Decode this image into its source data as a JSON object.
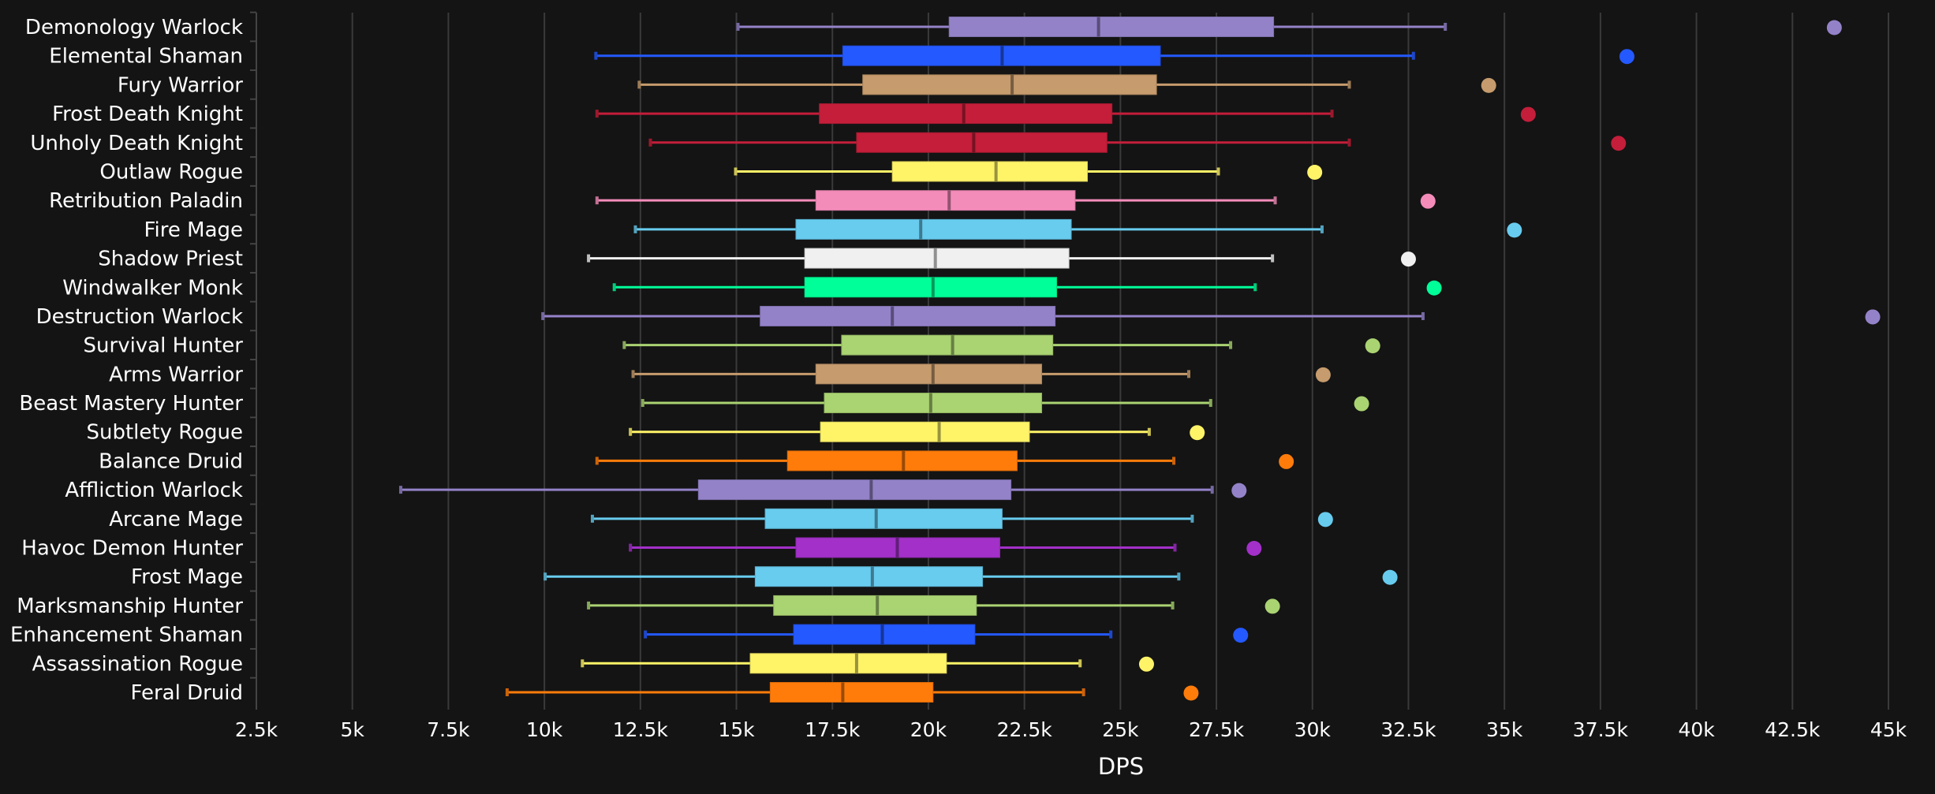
{
  "chart_data": {
    "type": "boxplot",
    "title": "",
    "xlabel": "DPS",
    "ylabel": "",
    "xlim": [
      2500,
      45000
    ],
    "x_ticks": [
      "2.5k",
      "5k",
      "7.5k",
      "10k",
      "12.5k",
      "15k",
      "17.5k",
      "20k",
      "22.5k",
      "25k",
      "27.5k",
      "30k",
      "32.5k",
      "35k",
      "37.5k",
      "40k",
      "42.5k",
      "45k"
    ],
    "x_tick_values": [
      2500,
      5000,
      7500,
      10000,
      12500,
      15000,
      17500,
      20000,
      22500,
      25000,
      27500,
      30000,
      32500,
      35000,
      37500,
      40000,
      42500,
      45000
    ],
    "grid": "vertical",
    "series": [
      {
        "name": "Demonology Warlock",
        "color": "#9482C9",
        "min": 15040,
        "q1": 20540,
        "median": 24430,
        "q3": 28990,
        "max": 33460,
        "outlier": 43590
      },
      {
        "name": "Elemental Shaman",
        "color": "#2459FF",
        "min": 11340,
        "q1": 17770,
        "median": 21920,
        "q3": 26040,
        "max": 32630,
        "outlier": 38190
      },
      {
        "name": "Fury Warrior",
        "color": "#C69B6D",
        "min": 12470,
        "q1": 18290,
        "median": 22180,
        "q3": 25940,
        "max": 30960,
        "outlier": 34590
      },
      {
        "name": "Frost Death Knight",
        "color": "#C41E3A",
        "min": 11370,
        "q1": 17160,
        "median": 20920,
        "q3": 24780,
        "max": 30510,
        "outlier": 35620
      },
      {
        "name": "Unholy Death Knight",
        "color": "#C41E3A",
        "min": 12760,
        "q1": 18130,
        "median": 21180,
        "q3": 24650,
        "max": 30960,
        "outlier": 37970
      },
      {
        "name": "Outlaw Rogue",
        "color": "#FFF468",
        "min": 14980,
        "q1": 19060,
        "median": 21760,
        "q3": 24140,
        "max": 27550,
        "outlier": 30060
      },
      {
        "name": "Retribution Paladin",
        "color": "#F48CBA",
        "min": 11370,
        "q1": 17070,
        "median": 20540,
        "q3": 23820,
        "max": 29030,
        "outlier": 33010
      },
      {
        "name": "Fire Mage",
        "color": "#68CCEF",
        "min": 12370,
        "q1": 16550,
        "median": 19800,
        "q3": 23720,
        "max": 30250,
        "outlier": 35260
      },
      {
        "name": "Shadow Priest",
        "color": "#F0F0F0",
        "min": 11150,
        "q1": 16780,
        "median": 20180,
        "q3": 23660,
        "max": 28960,
        "outlier": 32500
      },
      {
        "name": "Windwalker Monk",
        "color": "#00FF98",
        "min": 11820,
        "q1": 16780,
        "median": 20120,
        "q3": 23340,
        "max": 28510,
        "outlier": 33170
      },
      {
        "name": "Destruction Warlock",
        "color": "#9482C9",
        "min": 9960,
        "q1": 15620,
        "median": 19060,
        "q3": 23300,
        "max": 32880,
        "outlier": 44590
      },
      {
        "name": "Survival Hunter",
        "color": "#AAD372",
        "min": 12080,
        "q1": 17740,
        "median": 20630,
        "q3": 23240,
        "max": 27870,
        "outlier": 31570
      },
      {
        "name": "Arms Warrior",
        "color": "#C69B6D",
        "min": 12310,
        "q1": 17070,
        "median": 20120,
        "q3": 22950,
        "max": 26780,
        "outlier": 30280
      },
      {
        "name": "Beast Mastery Hunter",
        "color": "#AAD372",
        "min": 12560,
        "q1": 17290,
        "median": 20060,
        "q3": 22950,
        "max": 27350,
        "outlier": 31280
      },
      {
        "name": "Subtlety Rogue",
        "color": "#FFF468",
        "min": 12240,
        "q1": 17190,
        "median": 20280,
        "q3": 22630,
        "max": 25750,
        "outlier": 27000
      },
      {
        "name": "Balance Druid",
        "color": "#FF7C0A",
        "min": 11370,
        "q1": 16330,
        "median": 19350,
        "q3": 22310,
        "max": 26390,
        "outlier": 29320
      },
      {
        "name": "Affliction Warlock",
        "color": "#9482C9",
        "min": 6260,
        "q1": 14010,
        "median": 18510,
        "q3": 22150,
        "max": 27390,
        "outlier": 28090
      },
      {
        "name": "Arcane Mage",
        "color": "#68CCEF",
        "min": 11250,
        "q1": 15750,
        "median": 18640,
        "q3": 21920,
        "max": 26870,
        "outlier": 30340
      },
      {
        "name": "Havoc Demon Hunter",
        "color": "#A330C9",
        "min": 12240,
        "q1": 16550,
        "median": 19190,
        "q3": 21860,
        "max": 26420,
        "outlier": 28480
      },
      {
        "name": "Frost Mage",
        "color": "#68CCEF",
        "min": 10020,
        "q1": 15490,
        "median": 18540,
        "q3": 21410,
        "max": 26520,
        "outlier": 32020
      },
      {
        "name": "Marksmanship Hunter",
        "color": "#AAD372",
        "min": 11150,
        "q1": 15970,
        "median": 18670,
        "q3": 21250,
        "max": 26360,
        "outlier": 28960
      },
      {
        "name": "Enhancement Shaman",
        "color": "#2459FF",
        "min": 12630,
        "q1": 16490,
        "median": 18800,
        "q3": 21210,
        "max": 24750,
        "outlier": 28130
      },
      {
        "name": "Assassination Rogue",
        "color": "#FFF468",
        "min": 10990,
        "q1": 15360,
        "median": 18130,
        "q3": 20470,
        "max": 23950,
        "outlier": 25680
      },
      {
        "name": "Feral Druid",
        "color": "#FF7C0A",
        "min": 9030,
        "q1": 15880,
        "median": 17770,
        "q3": 20120,
        "max": 24040,
        "outlier": 26840
      }
    ]
  }
}
